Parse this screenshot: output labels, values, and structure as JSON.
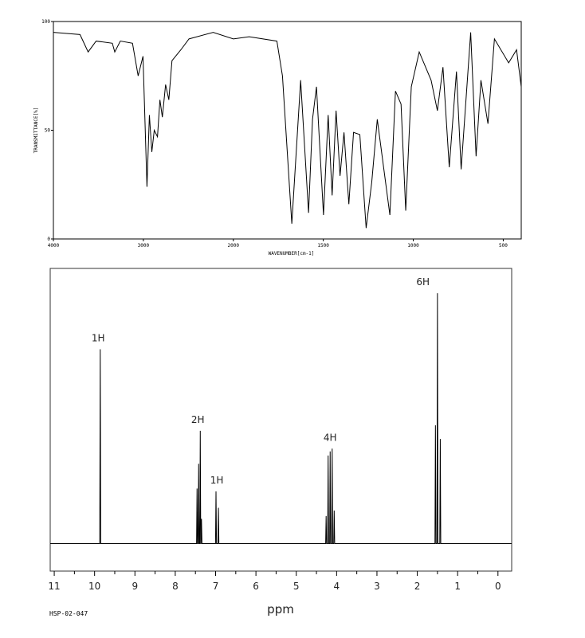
{
  "chart_data": [
    {
      "type": "line",
      "color": "#000000",
      "ylabel": "TRANSMITTANCE[%]",
      "xlabel": "WAVENUMBER[cm-1]",
      "xlim": [
        4000,
        400
      ],
      "ylim": [
        0,
        100
      ],
      "x_scale_break": 2000,
      "xticks": [
        4000,
        3000,
        2000,
        1500,
        1000,
        500
      ],
      "yticks": [
        0,
        50,
        100
      ],
      "x": [
        4000,
        3704,
        3614,
        3525,
        3345,
        3318,
        3256,
        3121,
        3058,
        3004,
        2960,
        2933,
        2906,
        2879,
        2843,
        2816,
        2789,
        2753,
        2717,
        2682,
        2583,
        2493,
        2224,
        2000,
        1912,
        1758,
        1727,
        1675,
        1626,
        1582,
        1560,
        1538,
        1499,
        1473,
        1451,
        1429,
        1407,
        1385,
        1358,
        1332,
        1297,
        1262,
        1231,
        1200,
        1165,
        1130,
        1099,
        1068,
        1042,
        1011,
        967,
        901,
        866,
        835,
        800,
        760,
        734,
        681,
        651,
        624,
        585,
        549,
        470,
        426,
        400
      ],
      "values": [
        95,
        94,
        86,
        91,
        90,
        86,
        91,
        90,
        75,
        84,
        24,
        57,
        40,
        50,
        47,
        64,
        56,
        71,
        64,
        82,
        87,
        92,
        95,
        92,
        93,
        91,
        75,
        7,
        73,
        12,
        55,
        70,
        11,
        57,
        20,
        59,
        29,
        49,
        16,
        49,
        48,
        5,
        26,
        55,
        33,
        11,
        68,
        62,
        13,
        70,
        86,
        73,
        59,
        79,
        33,
        77,
        32,
        95,
        38,
        73,
        53,
        92,
        81,
        87,
        70
      ]
    },
    {
      "type": "line",
      "color": "#000000",
      "xlabel": "ppm",
      "note": "HSP-02-047",
      "xlim": [
        11.1,
        -0.34
      ],
      "ylim": [
        -10,
        100
      ],
      "xticks": [
        11,
        10,
        9,
        8,
        7,
        6,
        5,
        4,
        3,
        2,
        1,
        0
      ],
      "x": [
        11.1,
        9.872,
        9.86,
        9.848,
        7.472,
        7.46,
        7.448,
        7.432,
        7.42,
        7.408,
        7.392,
        7.38,
        7.368,
        7.362,
        7.35,
        7.338,
        7.002,
        6.99,
        6.978,
        6.942,
        6.93,
        6.918,
        4.272,
        4.26,
        4.248,
        4.222,
        4.21,
        4.198,
        4.172,
        4.16,
        4.148,
        4.122,
        4.11,
        4.098,
        4.072,
        4.06,
        4.048,
        1.562,
        1.55,
        1.538,
        1.512,
        1.5,
        1.488,
        1.442,
        1.43,
        1.418,
        -0.34
      ],
      "values": [
        0,
        0,
        70.6,
        0,
        0,
        20,
        0,
        0,
        29,
        0,
        0,
        41,
        0,
        0,
        9,
        0,
        0,
        19,
        0,
        0,
        13,
        0,
        0,
        10,
        0,
        0,
        32,
        0,
        0,
        33.5,
        0,
        0,
        34.5,
        0,
        0,
        12,
        0,
        0,
        43,
        0,
        0,
        91,
        0,
        0,
        38,
        0,
        0
      ],
      "annotations": [
        {
          "text": "1H",
          "x": 9.91
        },
        {
          "text": "2H",
          "x": 7.44
        },
        {
          "text": "1H",
          "x": 6.97
        },
        {
          "text": "4H",
          "x": 4.16
        },
        {
          "text": "6H",
          "x": 1.86
        }
      ]
    }
  ]
}
